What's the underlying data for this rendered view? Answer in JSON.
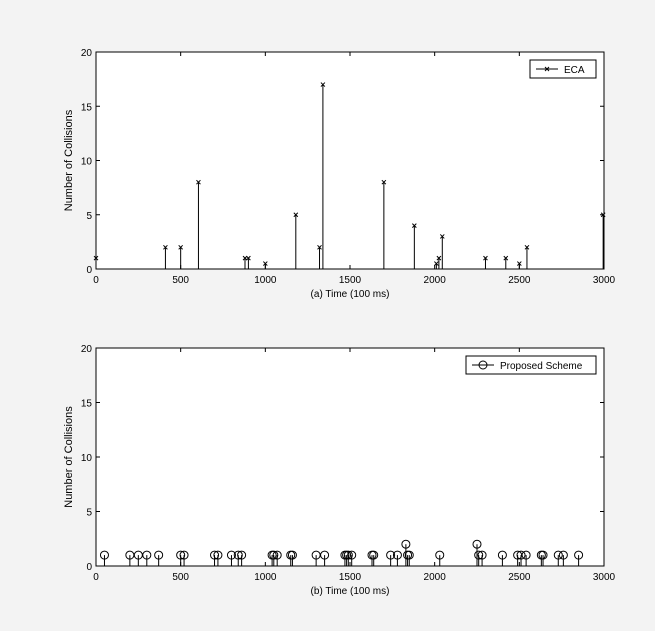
{
  "chart_data": [
    {
      "type": "stem",
      "title": "",
      "xlabel": "(a) Time (100 ms)",
      "ylabel": "Number of Collisions",
      "xlim": [
        0,
        3000
      ],
      "ylim": [
        0,
        20
      ],
      "xticks": [
        0,
        500,
        1000,
        1500,
        2000,
        2500,
        3000
      ],
      "yticks": [
        0,
        5,
        10,
        15,
        20
      ],
      "grid": false,
      "legend_position": "top-right",
      "series": [
        {
          "name": "ECA",
          "marker": "x",
          "x": [
            0,
            410,
            500,
            605,
            880,
            900,
            1000,
            1180,
            1320,
            1340,
            1700,
            1880,
            2010,
            2025,
            2045,
            2300,
            2420,
            2500,
            2545,
            2995
          ],
          "y": [
            1,
            2,
            2,
            8,
            1,
            1,
            0.5,
            5,
            2,
            17,
            8,
            4,
            0.5,
            1,
            3,
            1,
            1,
            0.5,
            2,
            5
          ]
        }
      ]
    },
    {
      "type": "stem",
      "title": "",
      "xlabel": "(b) Time (100 ms)",
      "ylabel": "Number of Collisions",
      "xlim": [
        0,
        3000
      ],
      "ylim": [
        0,
        20
      ],
      "xticks": [
        0,
        500,
        1000,
        1500,
        2000,
        2500,
        3000
      ],
      "yticks": [
        0,
        5,
        10,
        15,
        20
      ],
      "grid": false,
      "legend_position": "top-right",
      "series": [
        {
          "name": "Proposed Scheme",
          "marker": "o",
          "x": [
            50,
            200,
            250,
            300,
            370,
            500,
            520,
            700,
            720,
            800,
            840,
            860,
            1040,
            1050,
            1070,
            1150,
            1160,
            1300,
            1350,
            1470,
            1480,
            1490,
            1510,
            1630,
            1640,
            1740,
            1780,
            1830,
            1840,
            1850,
            2030,
            2250,
            2260,
            2280,
            2400,
            2490,
            2510,
            2540,
            2630,
            2640,
            2730,
            2760,
            2850
          ],
          "y": [
            1,
            1,
            1,
            1,
            1,
            1,
            1,
            1,
            1,
            1,
            1,
            1,
            1,
            1,
            1,
            1,
            1,
            1,
            1,
            1,
            1,
            1,
            1,
            1,
            1,
            1,
            1,
            2,
            1,
            1,
            1,
            2,
            1,
            1,
            1,
            1,
            1,
            1,
            1,
            1,
            1,
            1,
            1
          ]
        }
      ]
    }
  ]
}
